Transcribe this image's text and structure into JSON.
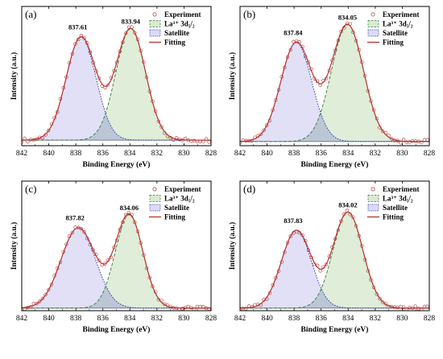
{
  "colors": {
    "fit_line": "#b5332e",
    "experiment_marker": "#b5332e",
    "la_fill": "#d9ead2",
    "la_line": "#3d7a3a",
    "satellite_fill": "#dcdaf6",
    "satellite_line": "#2233aa",
    "background_line": "#6f7f8c",
    "overlap_fill": "#bcc6d6"
  },
  "chart_data": [
    {
      "type": "line",
      "panel_label": "(a)",
      "xlabel": "Binding Energy (eV)",
      "ylabel": "Intensity (a.u.)",
      "xlim": [
        842,
        828
      ],
      "x_reversed": true,
      "xticks": [
        "842",
        "840",
        "838",
        "836",
        "834",
        "832",
        "830",
        "828"
      ],
      "y_ticks_shown": false,
      "baseline": 0.04,
      "legend": {
        "position": "top-right",
        "entries": [
          "Experiment",
          "La³⁺ 3d₅/₂",
          "Satellite",
          "Fitting"
        ]
      },
      "peaks": [
        {
          "series": "Satellite",
          "center": 837.61,
          "label": "837.61",
          "height": 0.74,
          "fwhm": 2.6
        },
        {
          "series": "La³⁺ 3d₅/₂",
          "center": 833.94,
          "label": "833.94",
          "height": 0.8,
          "fwhm": 2.6
        }
      ]
    },
    {
      "type": "line",
      "panel_label": "(b)",
      "xlabel": "Binding Energy (eV)",
      "ylabel": "Intensity (a.u.)",
      "xlim": [
        842,
        828
      ],
      "x_reversed": true,
      "xticks": [
        "842",
        "840",
        "838",
        "836",
        "834",
        "832",
        "830",
        "828"
      ],
      "y_ticks_shown": false,
      "baseline": 0.03,
      "legend": {
        "position": "top-right",
        "entries": [
          "Experiment",
          "La³⁺ 3d₅/₂",
          "Satellite",
          "Fitting"
        ]
      },
      "peaks": [
        {
          "series": "Satellite",
          "center": 837.84,
          "label": "837.84",
          "height": 0.71,
          "fwhm": 2.7
        },
        {
          "series": "La³⁺ 3d₅/₂",
          "center": 834.05,
          "label": "834.05",
          "height": 0.84,
          "fwhm": 2.8
        }
      ]
    },
    {
      "type": "line",
      "panel_label": "(c)",
      "xlabel": "Binding Energy (eV)",
      "ylabel": "Intensity (a.u.)",
      "xlim": [
        842,
        828
      ],
      "x_reversed": true,
      "xticks": [
        "842",
        "840",
        "838",
        "836",
        "834",
        "832",
        "830",
        "828"
      ],
      "y_ticks_shown": false,
      "baseline": 0.02,
      "legend": {
        "position": "top-right",
        "entries": [
          "Experiment",
          "La³⁺ 3d₅/₂",
          "Satellite",
          "Fitting"
        ]
      },
      "peaks": [
        {
          "series": "Satellite",
          "center": 837.82,
          "label": "837.82",
          "height": 0.62,
          "fwhm": 3.0
        },
        {
          "series": "La³⁺ 3d₅/₂",
          "center": 834.06,
          "label": "834.06",
          "height": 0.72,
          "fwhm": 2.4
        }
      ]
    },
    {
      "type": "line",
      "panel_label": "(d)",
      "xlabel": "Binding Energy (eV)",
      "ylabel": "Intensity (a.u.)",
      "xlim": [
        842,
        828
      ],
      "x_reversed": true,
      "xticks": [
        "842",
        "840",
        "838",
        "836",
        "834",
        "832",
        "830",
        "828"
      ],
      "y_ticks_shown": false,
      "baseline": 0.02,
      "legend": {
        "position": "top-right",
        "entries": [
          "Experiment",
          "La³⁺ 3d₅/₂",
          "Satellite",
          "Fitting"
        ]
      },
      "peaks": [
        {
          "series": "Satellite",
          "center": 837.83,
          "label": "837.83",
          "height": 0.6,
          "fwhm": 2.6
        },
        {
          "series": "La³⁺ 3d₅/₂",
          "center": 834.02,
          "label": "834.02",
          "height": 0.74,
          "fwhm": 2.6
        }
      ]
    }
  ]
}
